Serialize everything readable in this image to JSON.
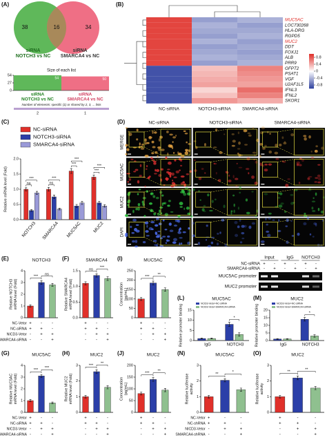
{
  "chart_data": [
    {
      "type": "venn",
      "panel": "(A)",
      "sets": [
        {
          "name": [
            "siRNA",
            "NOTCH3 vs NC"
          ],
          "color": "#5fb85a"
        },
        {
          "name": [
            "siRNA",
            "SMARCA4 vs NC"
          ],
          "color": "#ef6f85"
        }
      ],
      "overlap_color": "#a8895a",
      "values": [
        38,
        16,
        34
      ]
    },
    {
      "type": "upset",
      "title": "Size of each list",
      "categories": [
        [
          "siRNA",
          "NOTCH3 vs NC"
        ],
        [
          "siRNA",
          "SMARCA4 vs NC"
        ]
      ],
      "values": [
        54,
        50
      ],
      "colors": [
        "#5fb85a",
        "#ef6f85"
      ],
      "ylim": [
        0,
        54
      ],
      "yticks": [
        0,
        27,
        54
      ],
      "xlabel": "Number of elements: specific (1) or shared by 2, 3, ... lists",
      "strip_ticks": [
        2,
        1
      ],
      "strip_color": "#b9a0d0"
    },
    {
      "type": "heatmap",
      "panel": "(B)",
      "columns": [
        "NC-siRNA",
        "NOTCH3-siRNA",
        "SMARCA4-siRNA"
      ],
      "rows": [
        "MUC5AC",
        "LOC730268",
        "HLA-DRG",
        "RGPD5",
        "MUC2",
        "DDT",
        "FOXJ1",
        "ALB",
        "PRR9",
        "GFPT2",
        "PSAT1",
        "VGF",
        "U2AF1L5",
        "IFNL3",
        "IFNL2",
        "SKOR1"
      ],
      "values": [
        [
          0.9,
          -0.5,
          -0.4
        ],
        [
          0.9,
          -0.4,
          -0.5
        ],
        [
          0.9,
          -0.45,
          -0.45
        ],
        [
          0.9,
          -0.5,
          -0.4
        ],
        [
          0.9,
          -0.4,
          -0.5
        ],
        [
          0.9,
          -0.5,
          -0.45
        ],
        [
          0.9,
          -0.45,
          -0.5
        ],
        [
          0.9,
          -0.4,
          -0.45
        ],
        [
          0.9,
          -0.5,
          -0.4
        ],
        [
          -0.9,
          0.3,
          0.6
        ],
        [
          -0.9,
          0.35,
          0.55
        ],
        [
          -0.9,
          0.4,
          0.5
        ],
        [
          -0.9,
          0.45,
          0.45
        ],
        [
          -0.9,
          0.2,
          0.7
        ],
        [
          -0.9,
          0.3,
          0.6
        ],
        [
          -0.9,
          0.5,
          0.4
        ]
      ],
      "clim": [
        -1,
        1
      ],
      "colorbar_ticks": [
        0.8,
        0.4,
        0,
        -0.4,
        -0.8
      ],
      "colors": {
        "low": "#2d3f9e",
        "mid": "#ffffff",
        "high": "#e0302a"
      },
      "highlight_rows": [
        0,
        4
      ],
      "highlight_color": "#e0302a"
    },
    {
      "type": "grouped_bar",
      "panel": "(C)",
      "ylabel": "Relative mRNA level (Fold)",
      "legend": "top",
      "categories": [
        "NOTCH3",
        "SMARCA4",
        "MUC5AC",
        "MUC2"
      ],
      "series": [
        {
          "name": "NC-siRNA",
          "color": "#e0302a",
          "values": [
            1.0,
            1.0,
            1.6,
            1.4
          ],
          "errors": [
            0.05,
            0.06,
            0.08,
            0.07
          ]
        },
        {
          "name": "NOTCH3-siRNA",
          "color": "#2b3fa8",
          "values": [
            0.3,
            0.75,
            0.45,
            0.55
          ],
          "errors": [
            0.03,
            0.06,
            0.05,
            0.05
          ]
        },
        {
          "name": "SMARCA4-siRNA",
          "color": "#9a9ad8",
          "values": [
            0.88,
            0.35,
            0.55,
            0.45
          ],
          "errors": [
            0.05,
            0.03,
            0.05,
            0.04
          ]
        }
      ],
      "ylim": [
        0,
        2
      ],
      "yticks": [
        {
          "value": 0,
          "label": "0.0"
        },
        0.5,
        {
          "value": 1,
          "label": "1.0"
        },
        1.5,
        {
          "value": 2,
          "label": "2.0"
        }
      ],
      "annotations": [
        {
          "group": 0,
          "from": 0,
          "to": 1,
          "text": "ns"
        },
        {
          "group": 0,
          "from": 0,
          "to": 2,
          "text": "***"
        },
        {
          "group": 1,
          "from": 0,
          "to": 1,
          "text": "ns"
        },
        {
          "group": 1,
          "from": 0,
          "to": 2,
          "text": "***"
        },
        {
          "group": 2,
          "from": 0,
          "to": 1,
          "text": "***"
        },
        {
          "group": 2,
          "from": 0,
          "to": 2,
          "text": "***"
        },
        {
          "group": 3,
          "from": 0,
          "to": 1,
          "text": "***"
        },
        {
          "group": 3,
          "from": 0,
          "to": 2,
          "text": "***"
        }
      ]
    },
    {
      "type": "image_grid",
      "panel": "(D)",
      "columns": [
        "NC-siRNA",
        "NOTCH3-siRNA",
        "SMARCA4-siRNA"
      ],
      "rows": [
        "MERGE",
        "MUC5AC",
        "MUC2",
        "DAPI"
      ],
      "row_colors": [
        "#e0a040",
        "#e03030",
        "#30c040",
        "#4a6ae8"
      ]
    },
    {
      "type": "bar",
      "panel": "(E)",
      "title": "NOTCH3",
      "ylabel": [
        "Relative NOTCH3",
        "mRNA level (Fold)"
      ],
      "values": [
        1.0,
        3.0,
        2.8
      ],
      "errors": [
        0.1,
        0.15,
        0.12
      ],
      "colors": [
        "#e0302a",
        "#2b3fa8",
        "#8fc08f"
      ],
      "ylim": [
        0,
        4
      ],
      "yticks": [
        0,
        1,
        2,
        3,
        4
      ],
      "annotations": [
        {
          "from": 0,
          "to": 1,
          "text": "***"
        },
        {
          "from": 1,
          "to": 2,
          "text": "ns"
        }
      ],
      "row_labels": [
        "NC-Vetor",
        "NC-siRNA",
        "NICD3-Vetor",
        "SMARCA4-siRNA"
      ],
      "signs": [
        [
          "+",
          "-",
          "-"
        ],
        [
          "+",
          "+",
          "-"
        ],
        [
          "-",
          "+",
          "+"
        ],
        [
          "-",
          "-",
          "+"
        ]
      ]
    },
    {
      "type": "bar",
      "panel": "(F)",
      "title": "SMARCA4",
      "ylabel": [
        "Relative SMARCA4",
        "mRNA level (Fold)"
      ],
      "values": [
        1.1,
        1.35,
        1.25
      ],
      "errors": [
        0.05,
        0.05,
        0.06
      ],
      "colors": [
        "#e0302a",
        "#2b3fa8",
        "#8fc08f"
      ],
      "ylim": [
        0,
        1.5
      ],
      "yticks": [
        {
          "value": 0,
          "label": "0.0"
        },
        0.5,
        {
          "value": 1,
          "label": "1.0"
        },
        1.5
      ],
      "annotations": [
        {
          "from": 0,
          "to": 1,
          "text": "ns"
        },
        {
          "from": 1,
          "to": 2,
          "text": "***"
        }
      ],
      "signs": [
        [
          "+",
          "-",
          "-"
        ],
        [
          "+",
          "+",
          "-"
        ],
        [
          "-",
          "+",
          "+"
        ],
        [
          "-",
          "-",
          "+"
        ]
      ]
    },
    {
      "type": "bar",
      "panel": "(I)",
      "title": "MUC5AC",
      "ylabel": [
        "Concentration",
        "(pg/mL)"
      ],
      "values": [
        100,
        185,
        150
      ],
      "errors": [
        8,
        10,
        9
      ],
      "colors": [
        "#e0302a",
        "#2b3fa8",
        "#8fc08f"
      ],
      "ylim": [
        0,
        250
      ],
      "yticks": [
        0,
        50,
        100,
        150,
        200,
        250
      ],
      "annotations": [
        {
          "from": 0,
          "to": 1,
          "text": "***"
        },
        {
          "from": 1,
          "to": 2,
          "text": "**"
        }
      ],
      "signs": [
        [
          "+",
          "-",
          "-"
        ],
        [
          "+",
          "+",
          "-"
        ],
        [
          "-",
          "+",
          "+"
        ],
        [
          "-",
          "-",
          "+"
        ]
      ]
    },
    {
      "type": "bar",
      "panel": "(G)",
      "title": "MUC5AC",
      "ylabel": [
        "Relative MUC5AC",
        "mRNA level (Fold)"
      ],
      "values": [
        1.0,
        3.1,
        0.8
      ],
      "errors": [
        0.1,
        0.12,
        0.08
      ],
      "colors": [
        "#e0302a",
        "#2b3fa8",
        "#8fc08f"
      ],
      "ylim": [
        0,
        4
      ],
      "yticks": [
        0,
        1,
        2,
        3,
        4
      ],
      "annotations": [
        {
          "from": 0,
          "to": 1,
          "text": "***"
        },
        {
          "from": 1,
          "to": 2,
          "text": "***"
        }
      ],
      "row_labels": [
        "NC-Vetor",
        "NC-siRNA",
        "NICD3-Vetor",
        "SMARCA4-siRNA"
      ],
      "signs": [
        [
          "+",
          "-",
          "-"
        ],
        [
          "+",
          "+",
          "-"
        ],
        [
          "-",
          "+",
          "+"
        ],
        [
          "-",
          "-",
          "+"
        ]
      ]
    },
    {
      "type": "bar",
      "panel": "(H)",
      "title": "MUC2",
      "ylabel": [
        "Relative MUC2",
        "mRNA level (Fold)"
      ],
      "values": [
        1.0,
        2.6,
        1.6
      ],
      "errors": [
        0.08,
        0.12,
        0.1
      ],
      "colors": [
        "#e0302a",
        "#2b3fa8",
        "#8fc08f"
      ],
      "ylim": [
        0,
        3
      ],
      "yticks": [
        0,
        1,
        2,
        3
      ],
      "annotations": [
        {
          "from": 0,
          "to": 1,
          "text": "***"
        },
        {
          "from": 1,
          "to": 2,
          "text": "**"
        }
      ],
      "signs": [
        [
          "+",
          "-",
          "-"
        ],
        [
          "+",
          "+",
          "-"
        ],
        [
          "-",
          "+",
          "+"
        ],
        [
          "-",
          "-",
          "+"
        ]
      ]
    },
    {
      "type": "bar",
      "panel": "(J)",
      "title": "MUC2",
      "ylabel": [
        "Concentration",
        "(pg/mL)"
      ],
      "values": [
        80,
        140,
        95
      ],
      "errors": [
        6,
        8,
        7
      ],
      "colors": [
        "#e0302a",
        "#2b3fa8",
        "#8fc08f"
      ],
      "ylim": [
        0,
        200
      ],
      "yticks": [
        0,
        50,
        100,
        150,
        200
      ],
      "annotations": [
        {
          "from": 0,
          "to": 1,
          "text": "***"
        },
        {
          "from": 1,
          "to": 2,
          "text": "**"
        }
      ],
      "signs": [
        [
          "+",
          "-",
          "-"
        ],
        [
          "+",
          "+",
          "-"
        ],
        [
          "-",
          "+",
          "+"
        ],
        [
          "-",
          "-",
          "+"
        ]
      ]
    },
    {
      "type": "gel",
      "panel": "(K)",
      "groups": [
        "Input",
        "IgG",
        "NOTCH3"
      ],
      "row_labels": [
        "NC-siRNA",
        "SMARCA4-siRNA"
      ],
      "signs": [
        [
          "+",
          "-",
          "+",
          "-",
          "+",
          "-"
        ],
        [
          "-",
          "+",
          "-",
          "+",
          "-",
          "+"
        ]
      ],
      "bands": [
        "MUC5AC promoter",
        "MUC2 promoter"
      ]
    },
    {
      "type": "grouped_bar",
      "panel": "(L)",
      "title": "MUC5AC",
      "ylabel": "Relative promoter binding",
      "legend": "inside",
      "categories": [
        "IgG",
        "NOTCH3"
      ],
      "series": [
        {
          "name": "NCID3-Vetor+NC-siRNA",
          "color": "#2b3fa8",
          "values": [
            1,
            8
          ],
          "errors": [
            0.2,
            1.0
          ]
        },
        {
          "name": "NCID3-Vetor+SMARCA4-siRNA",
          "color": "#8fc08f",
          "values": [
            1,
            3
          ],
          "errors": [
            0.2,
            0.8
          ]
        }
      ],
      "ylim": [
        0,
        15
      ],
      "yticks": [
        0,
        5,
        10,
        15
      ],
      "annotations": [
        {
          "group": 1,
          "from": 0,
          "to": 1,
          "text": "*"
        }
      ]
    },
    {
      "type": "grouped_bar",
      "panel": "(M)",
      "title": "MUC2",
      "ylabel": "Relative promoter binding",
      "legend": "inside",
      "categories": [
        "IgG",
        "NOTCH3"
      ],
      "series": [
        {
          "name": "NCID3-Vetor+NC-siRNA",
          "color": "#2b3fa8",
          "values": [
            1,
            14
          ],
          "errors": [
            0.2,
            1.2
          ]
        },
        {
          "name": "NCID3-Vetor+SMARCA4-siRNA",
          "color": "#8fc08f",
          "values": [
            1,
            3
          ],
          "errors": [
            0.2,
            0.8
          ]
        }
      ],
      "ylim": [
        0,
        20
      ],
      "yticks": [
        0,
        5,
        10,
        15,
        20
      ],
      "annotations": [
        {
          "group": 1,
          "from": 0,
          "to": 1,
          "text": "*"
        }
      ]
    },
    {
      "type": "bar",
      "panel": "(N)",
      "title": "MUC5AC",
      "ylabel": [
        "Relative luciferase",
        "activity"
      ],
      "values": [
        1.0,
        2.05,
        1.45
      ],
      "errors": [
        0.08,
        0.1,
        0.1
      ],
      "colors": [
        "#e0302a",
        "#2b3fa8",
        "#8fc08f"
      ],
      "ylim": [
        0,
        3
      ],
      "yticks": [
        0,
        1,
        2,
        3
      ],
      "annotations": [
        {
          "from": 0,
          "to": 1,
          "text": "**"
        },
        {
          "from": 1,
          "to": 2,
          "text": "*"
        }
      ],
      "row_labels": [
        "NC-Vetor",
        "NC-shRNA",
        "NICD3-Vetor",
        "SMARCA4-shRNA"
      ],
      "signs": [
        [
          "+",
          "-",
          "-"
        ],
        [
          "+",
          "+",
          "-"
        ],
        [
          "-",
          "+",
          "+"
        ],
        [
          "-",
          "-",
          "+"
        ]
      ]
    },
    {
      "type": "bar",
      "panel": "(O)",
      "title": "MUC2",
      "ylabel": [
        "Relative luciferase",
        "activity"
      ],
      "values": [
        1.0,
        2.2,
        1.55
      ],
      "errors": [
        0.08,
        0.12,
        0.1
      ],
      "colors": [
        "#e0302a",
        "#2b3fa8",
        "#8fc08f"
      ],
      "ylim": [
        0,
        3
      ],
      "yticks": [
        0,
        1,
        2,
        3
      ],
      "annotations": [
        {
          "from": 0,
          "to": 1,
          "text": "**"
        },
        {
          "from": 1,
          "to": 2,
          "text": "**"
        }
      ],
      "signs": [
        [
          "+",
          "-",
          "-"
        ],
        [
          "+",
          "+",
          "-"
        ],
        [
          "-",
          "+",
          "+"
        ],
        [
          "-",
          "-",
          "+"
        ]
      ]
    }
  ]
}
